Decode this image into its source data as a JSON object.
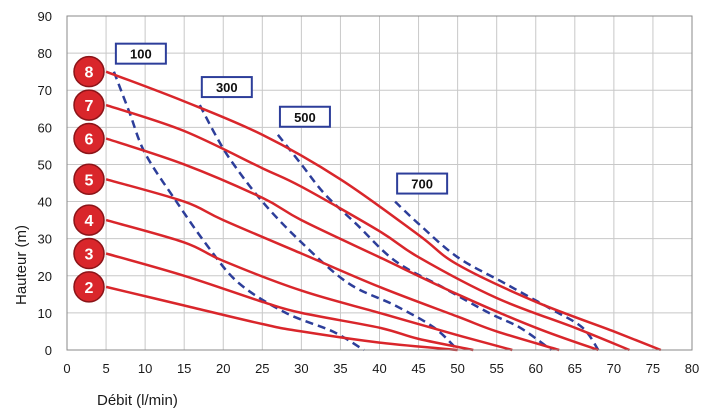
{
  "chart_data": {
    "type": "line",
    "xlabel": "Débit (l/min)",
    "ylabel": "Hauteur (m)",
    "xlim": [
      0,
      80
    ],
    "ylim": [
      0,
      90
    ],
    "xticks": [
      "0",
      "5",
      "10",
      "15",
      "20",
      "25",
      "30",
      "35",
      "40",
      "45",
      "50",
      "55",
      "60",
      "65",
      "70",
      "75",
      "80"
    ],
    "yticks": [
      "0",
      "10",
      "20",
      "30",
      "40",
      "50",
      "60",
      "70",
      "80",
      "90"
    ],
    "grid": true,
    "colors": {
      "series": "#d9262b",
      "isolines": "#2d3e9a",
      "grid": "#c8c8c8",
      "badge": "#d9262b"
    },
    "series": [
      {
        "name": "2",
        "points": [
          [
            5,
            17
          ],
          [
            15,
            12
          ],
          [
            25,
            7
          ],
          [
            30,
            5
          ],
          [
            40,
            2
          ],
          [
            50,
            0
          ]
        ]
      },
      {
        "name": "3",
        "points": [
          [
            5,
            26
          ],
          [
            15,
            20
          ],
          [
            25,
            13
          ],
          [
            30,
            10
          ],
          [
            40,
            6
          ],
          [
            45,
            3
          ],
          [
            52,
            0
          ]
        ]
      },
      {
        "name": "4",
        "points": [
          [
            5,
            35
          ],
          [
            15,
            29
          ],
          [
            20,
            24
          ],
          [
            30,
            16
          ],
          [
            40,
            10
          ],
          [
            50,
            4
          ],
          [
            57,
            0
          ]
        ]
      },
      {
        "name": "5",
        "points": [
          [
            5,
            46
          ],
          [
            15,
            40
          ],
          [
            20,
            35
          ],
          [
            30,
            26
          ],
          [
            40,
            17
          ],
          [
            50,
            9
          ],
          [
            55,
            5
          ],
          [
            63,
            0
          ]
        ]
      },
      {
        "name": "6",
        "points": [
          [
            5,
            57
          ],
          [
            15,
            50
          ],
          [
            25,
            41
          ],
          [
            30,
            35
          ],
          [
            40,
            25
          ],
          [
            50,
            15
          ],
          [
            60,
            6
          ],
          [
            68,
            0
          ]
        ]
      },
      {
        "name": "7",
        "points": [
          [
            5,
            66
          ],
          [
            15,
            59
          ],
          [
            25,
            49
          ],
          [
            30,
            44
          ],
          [
            40,
            32
          ],
          [
            45,
            25
          ],
          [
            55,
            14
          ],
          [
            65,
            6
          ],
          [
            72,
            0
          ]
        ]
      },
      {
        "name": "8",
        "points": [
          [
            5,
            75
          ],
          [
            15,
            67
          ],
          [
            25,
            58
          ],
          [
            35,
            46
          ],
          [
            45,
            31
          ],
          [
            50,
            23
          ],
          [
            60,
            13
          ],
          [
            70,
            5
          ],
          [
            76,
            0
          ]
        ]
      }
    ],
    "isolines": [
      {
        "name": "100",
        "points": [
          [
            6,
            75
          ],
          [
            8,
            64
          ],
          [
            10,
            53
          ],
          [
            14,
            40
          ],
          [
            18,
            28
          ],
          [
            22,
            18
          ],
          [
            28,
            10
          ],
          [
            34,
            5
          ],
          [
            38,
            0
          ]
        ]
      },
      {
        "name": "300",
        "points": [
          [
            17,
            66
          ],
          [
            19,
            58
          ],
          [
            21,
            51
          ],
          [
            25,
            40
          ],
          [
            30,
            29
          ],
          [
            36,
            18
          ],
          [
            42,
            12
          ],
          [
            47,
            6
          ],
          [
            50,
            0
          ]
        ]
      },
      {
        "name": "500",
        "points": [
          [
            27,
            58
          ],
          [
            30,
            50
          ],
          [
            33,
            42
          ],
          [
            37,
            34
          ],
          [
            42,
            24
          ],
          [
            48,
            17
          ],
          [
            54,
            10
          ],
          [
            58,
            6
          ],
          [
            62,
            0
          ]
        ]
      },
      {
        "name": "700",
        "points": [
          [
            42,
            40
          ],
          [
            45,
            34
          ],
          [
            50,
            25
          ],
          [
            56,
            18
          ],
          [
            62,
            11
          ],
          [
            66,
            6
          ],
          [
            68,
            0
          ]
        ]
      }
    ]
  }
}
